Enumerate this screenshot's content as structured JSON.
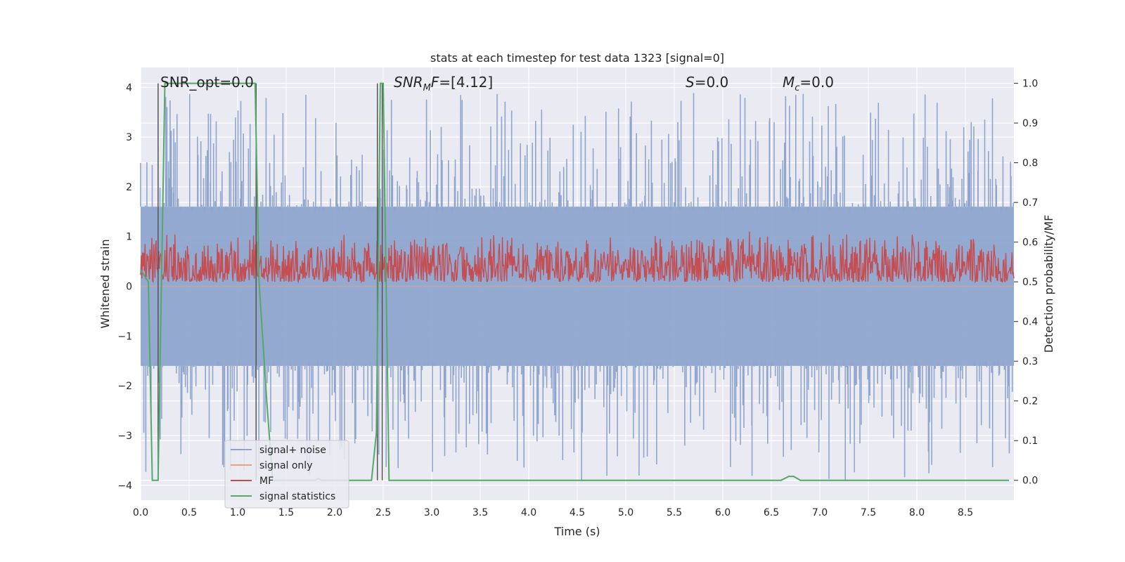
{
  "chart_data": {
    "type": "line",
    "title": "stats at each timestep for test data 1323 [signal=0]",
    "xlabel": "Time (s)",
    "ylabel_left": "Whitened strain",
    "ylabel_right": "Detection probability/MF",
    "xlim": [
      0.0,
      9.0
    ],
    "ylim_left": [
      -4.3,
      4.4
    ],
    "ylim_right": [
      -0.05,
      1.04
    ],
    "xticks": [
      "0.0",
      "0.5",
      "1.0",
      "1.5",
      "2.0",
      "2.5",
      "3.0",
      "3.5",
      "4.0",
      "4.5",
      "5.0",
      "5.5",
      "6.0",
      "6.5",
      "7.0",
      "7.5",
      "8.0",
      "8.5"
    ],
    "yticks_left": [
      "−4",
      "−3",
      "−2",
      "−1",
      "0",
      "1",
      "2",
      "3",
      "4"
    ],
    "yticks_right": [
      "0.0",
      "0.1",
      "0.2",
      "0.3",
      "0.4",
      "0.5",
      "0.6",
      "0.7",
      "0.8",
      "0.9",
      "1.0"
    ],
    "grid": true,
    "background": "#eaeaf2",
    "annotations": {
      "snr_opt": {
        "prefix": "SNR_opt=",
        "value": "0.0"
      },
      "snr_mf": {
        "var": "SNR",
        "sub": "M",
        "suffix": "F",
        "value": "=[4.12]"
      },
      "s": {
        "var": "S",
        "value": "=0.0"
      },
      "mc": {
        "var": "M",
        "sub": "c",
        "value": "=0.0"
      }
    },
    "vertical_lines_x": [
      0.18,
      1.19,
      2.44,
      2.49
    ],
    "series": [
      {
        "name": "signal+ noise",
        "axis": "left",
        "color": "#8fa5cd",
        "description": "noise band",
        "envelope": [
          -1.6,
          1.6
        ],
        "peaks_up_to": 3.9,
        "peaks_down_to": -3.9
      },
      {
        "name": "signal only",
        "axis": "left",
        "color": "#e8a07e",
        "values": "zero"
      },
      {
        "name": "MF",
        "axis": "right",
        "color": "#c44e52",
        "baseline": 0.5,
        "range": [
          0.5,
          0.63
        ]
      },
      {
        "name": "signal statistics",
        "axis": "right",
        "color": "#55a868",
        "x": [
          0.0,
          0.08,
          0.12,
          0.18,
          0.25,
          0.3,
          1.18,
          1.22,
          1.3,
          1.36,
          1.4,
          1.8,
          1.83,
          1.86,
          2.38,
          2.43,
          2.47,
          2.5,
          2.53,
          2.56,
          2.6,
          6.6,
          6.68,
          6.73,
          6.8,
          8.95
        ],
        "y": [
          0.53,
          0.5,
          0.0,
          0.0,
          1.0,
          1.0,
          1.0,
          0.5,
          0.2,
          0.0,
          0.0,
          0.0,
          0.005,
          0.0,
          0.0,
          0.12,
          1.0,
          1.0,
          0.5,
          0.0,
          0.0,
          0.0,
          0.01,
          0.01,
          0.0,
          0.0
        ]
      }
    ],
    "legend": {
      "placement": "lower-left",
      "entries": [
        {
          "label": "signal+ noise",
          "color": "#8fa5cd"
        },
        {
          "label": "signal only",
          "color": "#e8a07e"
        },
        {
          "label": "MF",
          "color": "#c44e52"
        },
        {
          "label": "signal statistics",
          "color": "#55a868"
        }
      ]
    }
  }
}
